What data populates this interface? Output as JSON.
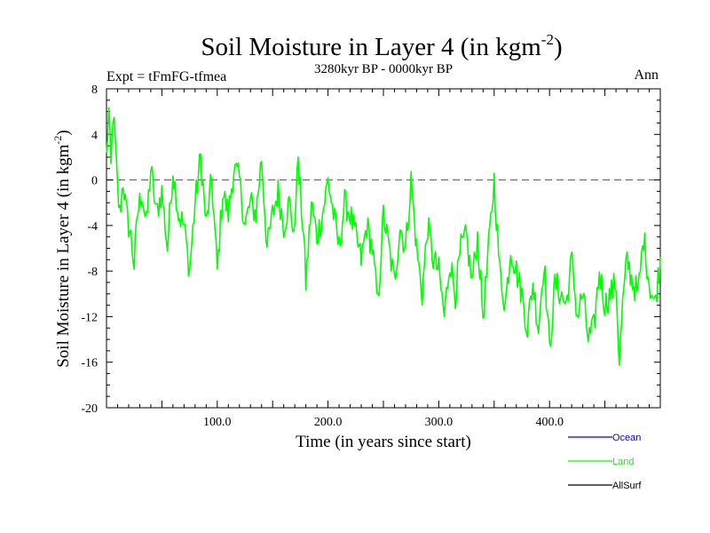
{
  "chart_data": {
    "type": "line",
    "title": "Soil Moisture in Layer 4 (in kgm",
    "title_sup": "-2",
    "title_end": ")",
    "subtitle": "3280kyr BP - 0000kyr BP",
    "expt_label": "Expt = tFmFG-tfmea",
    "season_label": "Ann",
    "xlabel": "Time (in years since start)",
    "ylabel": "Soil Moisture in Layer 4 (in kgm",
    "ylabel_sup": "-2",
    "ylabel_end": ")",
    "xlim": [
      0,
      500
    ],
    "ylim": [
      -20,
      8
    ],
    "x_ticks": [
      100,
      200,
      300,
      400
    ],
    "x_tick_labels": [
      "100.0",
      "200.0",
      "300.0",
      "400.0"
    ],
    "y_ticks": [
      8,
      4,
      0,
      -4,
      -8,
      -12,
      -16,
      -20
    ],
    "y_tick_labels": [
      "8",
      "4",
      "0",
      "-4",
      "-8",
      "-12",
      "-16",
      "-20"
    ],
    "zero_line": 0,
    "legend": [
      {
        "name": "Ocean",
        "color": "#0000ff"
      },
      {
        "name": "Land",
        "color": "#00ff00"
      },
      {
        "name": "AllSurf",
        "color": "#000000"
      }
    ],
    "series": [
      {
        "name": "Land",
        "color": "#00ff00",
        "anchors_x": [
          0,
          2,
          4,
          6,
          8,
          10,
          12,
          15,
          18,
          22,
          25,
          28,
          32,
          36,
          40,
          45,
          50,
          55,
          60,
          65,
          70,
          75,
          80,
          85,
          90,
          95,
          100,
          105,
          110,
          115,
          120,
          125,
          130,
          135,
          140,
          145,
          150,
          155,
          160,
          165,
          170,
          172,
          175,
          178,
          180,
          185,
          190,
          195,
          200,
          205,
          210,
          215,
          220,
          225,
          230,
          235,
          240,
          245,
          250,
          255,
          260,
          265,
          270,
          275,
          280,
          285,
          290,
          295,
          300,
          305,
          310,
          315,
          320,
          325,
          330,
          335,
          340,
          345,
          350,
          355,
          360,
          365,
          370,
          375,
          380,
          385,
          390,
          395,
          400,
          405,
          410,
          415,
          420,
          425,
          430,
          435,
          440,
          445,
          450,
          455,
          460,
          463,
          466,
          470,
          475,
          480,
          485,
          490,
          495,
          500
        ],
        "anchors_y": [
          2,
          6,
          1,
          6,
          3,
          -1,
          -3,
          0,
          -3,
          -5,
          -7.5,
          -3,
          -1,
          -4,
          1,
          -3,
          -1,
          -6,
          1,
          -3,
          -4,
          -8,
          -2,
          2,
          -4,
          0,
          -8,
          -1,
          -3,
          1,
          0,
          -4,
          -2,
          -3,
          2,
          -6,
          -3,
          -1,
          -4,
          -2,
          -5,
          2,
          -1,
          -5,
          -9,
          -2,
          -5,
          -3,
          0,
          -3,
          -6,
          -2,
          -3,
          -5,
          -7,
          -4,
          -6,
          -11,
          -3,
          -6,
          -9,
          -4,
          -6,
          0,
          -6,
          -10,
          -4,
          -7,
          -8,
          -12,
          -7,
          -10,
          -6,
          -5,
          -9,
          -5,
          -12,
          -6,
          0,
          -8,
          -11,
          -6,
          -8,
          -10,
          -13,
          -9,
          -13,
          -7,
          -15,
          -9,
          -10,
          -11,
          -7,
          -12,
          -10,
          -14,
          -13,
          -8,
          -11,
          -10,
          -9,
          -16,
          -11,
          -7,
          -9,
          -10,
          -5,
          -9,
          -11,
          -7
        ]
      }
    ]
  }
}
